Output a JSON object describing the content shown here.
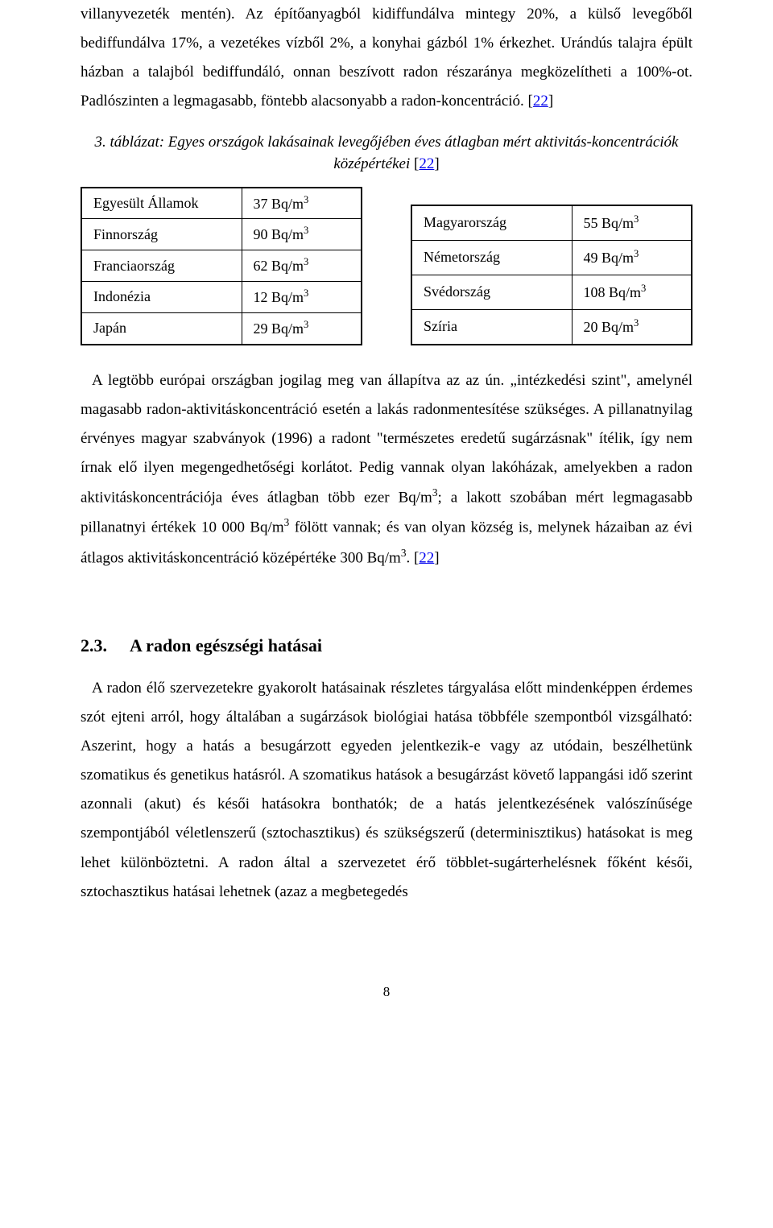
{
  "paragraph1": {
    "pre": "villanyvezeték mentén). Az építőanyagból kidiffundálva mintegy 20%, a külső levegőből bediffundálva 17%, a vezetékes vízből 2%, a konyhai gázból 1% érkezhet. Urándús talajra épült házban a talajból bediffundáló, onnan beszívott radon részaránya megközelítheti a 100%-ot. Padlószinten a legmagasabb, föntebb alacsonyabb a radon-koncentráció. [",
    "link": "22",
    "post": "]"
  },
  "tableCaption": {
    "lead": "3. táblázat: Egyes országok lakásainak levegőjében éves átlagban mért aktivitás-koncentrációk középértékei ",
    "linkOpen": "[",
    "link": "22",
    "linkClose": "]"
  },
  "tableLeft": {
    "rows": [
      {
        "c": "Egyesült Államok",
        "v": "37 Bq/m",
        "vsup": "3"
      },
      {
        "c": "Finnország",
        "v": "90 Bq/m",
        "vsup": "3"
      },
      {
        "c": "Franciaország",
        "v": "62 Bq/m",
        "vsup": "3"
      },
      {
        "c": "Indonézia",
        "v": "12 Bq/m",
        "vsup": "3"
      },
      {
        "c": "Japán",
        "v": "29 Bq/m",
        "vsup": "3"
      }
    ]
  },
  "tableRight": {
    "rows": [
      {
        "c": "Magyarország",
        "v": "55 Bq/m",
        "vsup": "3"
      },
      {
        "c": "Németország",
        "v": "49 Bq/m",
        "vsup": "3"
      },
      {
        "c": "Svédország",
        "v": "108 Bq/m",
        "vsup": "3"
      },
      {
        "c": "Szíria",
        "v": "20 Bq/m",
        "vsup": "3"
      }
    ]
  },
  "paragraph2": {
    "t1": "A legtöbb európai országban jogilag meg van állapítva az az ún. „intézkedési szint\", amelynél magasabb radon-aktivitáskoncentráció esetén a lakás radonmentesítése szükséges. A pillanatnyilag érvényes magyar szabványok (1996) a radont \"természetes eredetű sugárzásnak\" ítélik, így nem írnak elő ilyen megengedhetőségi korlátot. Pedig vannak olyan lakóházak, amelyekben a radon aktivitáskoncentrációja éves átlagban több ezer Bq/m",
    "s1": "3",
    "t2": "; a lakott szobában mért legmagasabb pillanatnyi értékek 10 000 Bq/m",
    "s2": "3",
    "t3": " fölött vannak; és van olyan község is, melynek házaiban az évi átlagos aktivitáskoncentráció középértéke 300 Bq/m",
    "s3": "3",
    "t4": ". [",
    "link": "22",
    "t5": "]"
  },
  "section": {
    "num": "2.3.",
    "title": "A radon egészségi hatásai"
  },
  "paragraph3": "A radon élő szervezetekre gyakorolt hatásainak részletes tárgyalása előtt mindenképpen érdemes szót ejteni arról, hogy általában a sugárzások biológiai hatása többféle szempontból vizsgálható: Aszerint, hogy a hatás a besugárzott egyeden jelentkezik-e vagy az utódain, beszélhetünk szomatikus és genetikus hatásról. A szomatikus hatások a besugárzást követő lappangási idő szerint azonnali (akut) és késői hatásokra bonthatók; de a hatás jelentkezésének valószínűsége szempontjából véletlenszerű (sztochasztikus) és szükségszerű (determinisztikus) hatásokat is meg lehet különböztetni. A radon által a szervezetet érő többlet-sugárterhelésnek főként késői, sztochasztikus hatásai lehetnek (azaz a megbetegedés",
  "pageNumber": "8"
}
